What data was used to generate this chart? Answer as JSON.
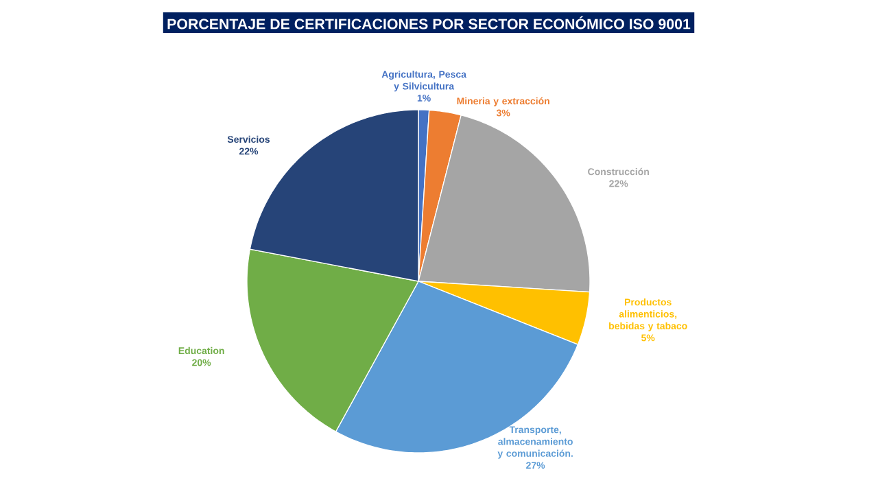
{
  "chart_data": {
    "type": "pie",
    "title": "PORCENTAJE DE CERTIFICACIONES POR SECTOR ECONÓMICO ISO 9001",
    "categories": [
      "Agricultura, Pesca y Silvicultura",
      "Mineria y extracción",
      "Construcción",
      "Productos alimenticios, bebidas y tabaco",
      "Transporte, almacenamiento y comunicación.",
      "Education",
      "Servicios"
    ],
    "values": [
      1,
      3,
      22,
      5,
      27,
      20,
      22
    ],
    "value_labels": [
      "1%",
      "3%",
      "22%",
      "5%",
      "27%",
      "20%",
      "22%"
    ],
    "colors": [
      "#4472c4",
      "#ed7d31",
      "#a5a5a5",
      "#ffc000",
      "#5b9bd5",
      "#70ad47",
      "#264478"
    ]
  }
}
